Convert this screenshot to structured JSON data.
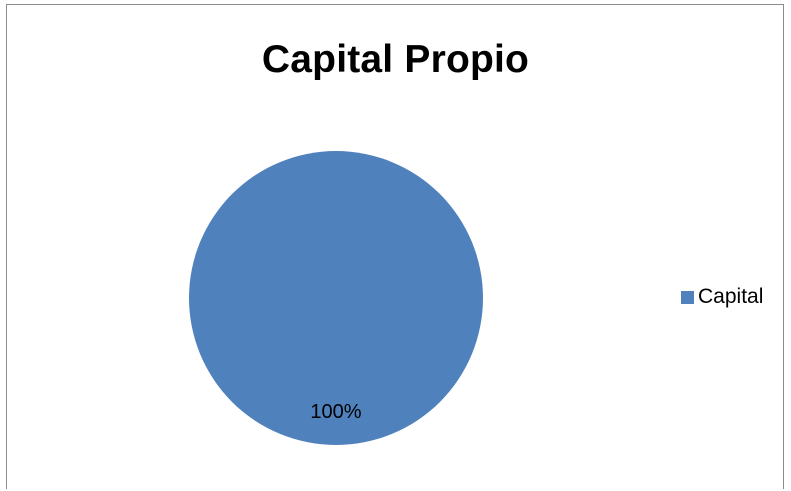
{
  "chart_data": {
    "type": "pie",
    "title": "Capital Propio",
    "slices": [
      {
        "label": "Capital",
        "value": 100,
        "data_label": "100%",
        "color": "#4f81bd"
      }
    ],
    "legend_position": "right"
  }
}
